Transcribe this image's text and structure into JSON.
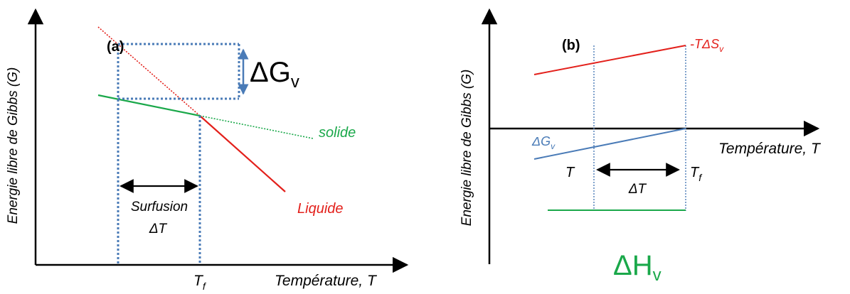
{
  "colors": {
    "axis": "#000000",
    "liquid": "#e3201b",
    "solid": "#1aa84a",
    "guide": "#4a7bb7",
    "delta_g": "#4a7bb7"
  },
  "panel_a": {
    "tag": "(a)",
    "ylabel": "Energie libre de Gibbs (G)",
    "xlabel": "Température, T",
    "delta_g_main": "ΔG",
    "delta_g_sub": "v",
    "solid_label": "solide",
    "liquid_label": "Liquide",
    "undercool_line1": "Surfusion",
    "undercool_line2": "ΔT",
    "tf_main": "T",
    "tf_sub": "f"
  },
  "panel_b": {
    "tag": "(b)",
    "ylabel": "Energie libre de Gibbs (G)",
    "xlabel": "Température, T",
    "tds_main": "-TΔS",
    "tds_sub": "v",
    "dg_main": "ΔG",
    "dg_sub": "v",
    "t_label": "T",
    "dt_label": "ΔT",
    "tf_main": "T",
    "tf_sub": "f",
    "dh_main": "ΔH",
    "dh_sub": "v"
  }
}
